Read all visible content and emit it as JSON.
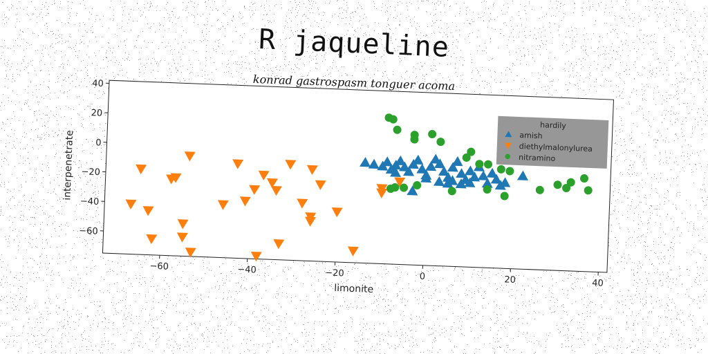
{
  "chart_data": {
    "type": "scatter",
    "title": "R jaqueline",
    "subtitle": "konrad gastrospasm tonguer acoma",
    "xlabel": "limonite",
    "ylabel": "interpenetrate",
    "xlim": [
      -73,
      42
    ],
    "ylim": [
      -75,
      42
    ],
    "xticks": [
      -60,
      -40,
      -20,
      0,
      20,
      40
    ],
    "yticks": [
      -60,
      -40,
      -20,
      0,
      20,
      40
    ],
    "grid": false,
    "legend": {
      "title": "hardily",
      "placement": "upper-right",
      "background": "#8c8c8c"
    },
    "series": [
      {
        "name": "amish",
        "color": "#1f77b4",
        "marker": "triangle-up",
        "points": [
          [
            -14,
            -7
          ],
          [
            -12,
            -8
          ],
          [
            -10,
            -9
          ],
          [
            -9,
            -6
          ],
          [
            -8,
            -11
          ],
          [
            -7,
            -8
          ],
          [
            -6,
            -5
          ],
          [
            -5,
            -9
          ],
          [
            -4,
            -12
          ],
          [
            -3,
            -7
          ],
          [
            -2,
            -4
          ],
          [
            -1,
            -10
          ],
          [
            0,
            -14
          ],
          [
            1,
            -8
          ],
          [
            2,
            -3
          ],
          [
            3,
            -6
          ],
          [
            4,
            -11
          ],
          [
            5,
            -15
          ],
          [
            6,
            -8
          ],
          [
            7,
            -4
          ],
          [
            8,
            -12
          ],
          [
            9,
            -16
          ],
          [
            10,
            -10
          ],
          [
            11,
            -14
          ],
          [
            12,
            -7
          ],
          [
            13,
            -13
          ],
          [
            14,
            -18
          ],
          [
            15,
            -11
          ],
          [
            16,
            -15
          ],
          [
            17,
            -19
          ],
          [
            18,
            -17
          ],
          [
            22,
            -12
          ],
          [
            -3,
            -25
          ],
          [
            5,
            -19
          ],
          [
            -7,
            -13
          ],
          [
            0,
            -16
          ],
          [
            3,
            -18
          ],
          [
            6,
            -17
          ],
          [
            8,
            -19
          ],
          [
            10,
            -18
          ]
        ]
      },
      {
        "name": "diethylmalonylurea",
        "color": "#ff7f0e",
        "marker": "triangle-down",
        "points": [
          [
            -67,
            -41
          ],
          [
            -65,
            -17
          ],
          [
            -63,
            -45
          ],
          [
            -62,
            -64
          ],
          [
            -58,
            -23
          ],
          [
            -57,
            -22
          ],
          [
            -55,
            -53
          ],
          [
            -55,
            -62
          ],
          [
            -54,
            -7
          ],
          [
            -53,
            -72
          ],
          [
            -46,
            -39
          ],
          [
            -43,
            -11
          ],
          [
            -41,
            -36
          ],
          [
            -39,
            -28
          ],
          [
            -38,
            -73
          ],
          [
            -37,
            -18
          ],
          [
            -35,
            -23
          ],
          [
            -34,
            -28
          ],
          [
            -33,
            -64
          ],
          [
            -31,
            -10
          ],
          [
            -28,
            -36
          ],
          [
            -26,
            -45
          ],
          [
            -26,
            -48
          ],
          [
            -26,
            -13
          ],
          [
            -24,
            -23
          ],
          [
            -20,
            -41
          ],
          [
            -16,
            -67
          ],
          [
            -10,
            -27
          ],
          [
            -10,
            -24
          ],
          [
            -6,
            -19
          ]
        ]
      },
      {
        "name": "nitramino",
        "color": "#2ca02c",
        "marker": "circle",
        "points": [
          [
            -9,
            24
          ],
          [
            -8,
            23
          ],
          [
            -7,
            16
          ],
          [
            -3,
            13
          ],
          [
            -3,
            10
          ],
          [
            1,
            14
          ],
          [
            3,
            9
          ],
          [
            9,
            -1
          ],
          [
            10,
            3
          ],
          [
            12,
            -5
          ],
          [
            14,
            -5
          ],
          [
            17,
            -8
          ],
          [
            19,
            -9
          ],
          [
            -8,
            -24
          ],
          [
            -7,
            -23
          ],
          [
            -5,
            -23
          ],
          [
            6,
            -24
          ],
          [
            14,
            -22
          ],
          [
            18,
            -26
          ],
          [
            26,
            -21
          ],
          [
            30,
            -17
          ],
          [
            32,
            -19
          ],
          [
            33,
            -15
          ],
          [
            36,
            -12
          ],
          [
            37,
            -20
          ],
          [
            -2,
            -21
          ]
        ]
      }
    ]
  }
}
